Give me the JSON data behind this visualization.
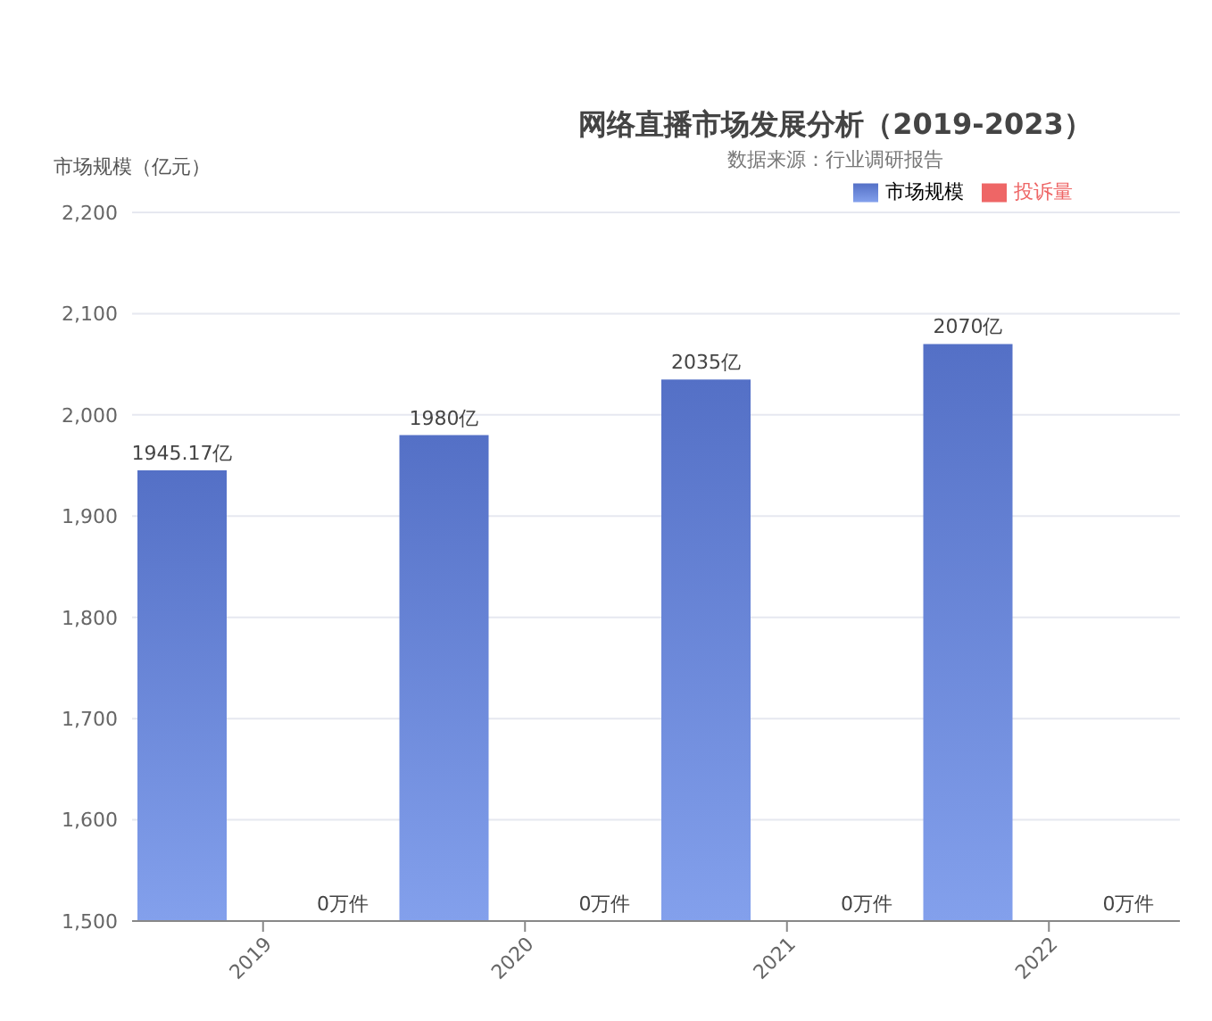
{
  "chart_data": {
    "type": "bar",
    "title": "网络直播市场发展分析（2019-2023）",
    "subtitle": "数据来源：行业调研报告",
    "ylabel": "市场规模（亿元）",
    "categories": [
      "2019",
      "2020",
      "2021",
      "2022"
    ],
    "series": [
      {
        "name": "市场规模",
        "color": "#5470c6",
        "values": [
          1945.17,
          1980,
          2035,
          2070
        ],
        "value_labels": [
          "1945.17亿",
          "1980亿",
          "2035亿",
          "2070亿"
        ]
      },
      {
        "name": "投诉量",
        "color": "#ee6666",
        "values": [
          null,
          null,
          null,
          null
        ],
        "value_labels": [
          "0万件",
          "0万件",
          "0万件",
          "0万件"
        ]
      }
    ],
    "ylim": [
      1500,
      2200
    ],
    "yticks": [
      {
        "value": 1500,
        "label": "1,500"
      },
      {
        "value": 1600,
        "label": "1,600"
      },
      {
        "value": 1700,
        "label": "1,700"
      },
      {
        "value": 1800,
        "label": "1,800"
      },
      {
        "value": 1900,
        "label": "1,900"
      },
      {
        "value": 2000,
        "label": "2,000"
      },
      {
        "value": 2100,
        "label": "2,100"
      },
      {
        "value": 2200,
        "label": "2,200"
      }
    ],
    "grid": "y",
    "legend": "top"
  }
}
